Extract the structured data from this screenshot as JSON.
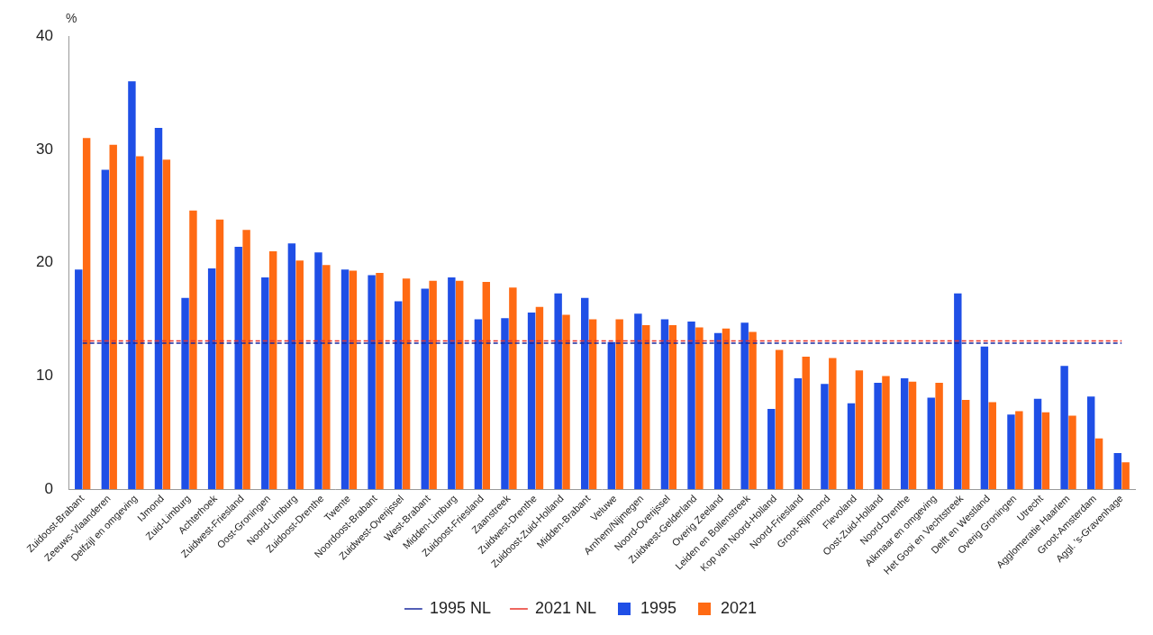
{
  "chart_data": {
    "type": "bar",
    "y_label": "%",
    "categories": [
      "Zuidoost-Brabant",
      "Zeeuws-Vlaanderen",
      "Delfzijl en omgeving",
      "IJmond",
      "Zuid-Limburg",
      "Achterhoek",
      "Zuidwest-Friesland",
      "Oost-Groningen",
      "Noord-Limburg",
      "Zuidoost-Drenthe",
      "Twente",
      "Noordoost-Brabant",
      "Zuidwest-Overijssel",
      "West-Brabant",
      "Midden-Limburg",
      "Zuidoost-Friesland",
      "Zaanstreek",
      "Zuidwest-Drenthe",
      "Zuidoost-Zuid-Holland",
      "Midden-Brabant",
      "Veluwe",
      "Arnhem/Nijmegen",
      "Noord-Overijssel",
      "Zuidwest-Gelderland",
      "Overig Zeeland",
      "Leiden en Bollenstreek",
      "Kop van Noord-Holland",
      "Noord-Friesland",
      "Groot-Rijnmond",
      "Flevoland",
      "Oost-Zuid-Holland",
      "Noord-Drenthe",
      "Alkmaar en omgeving",
      "Het Gooi en Vechtstreek",
      "Delft en Westland",
      "Overig Groningen",
      "Utrecht",
      "Agglomeratie Haarlem",
      "Groot-Amsterdam",
      "Aggl. 's-Gravenhage"
    ],
    "series": [
      {
        "name": "1995",
        "type": "bar",
        "color": "#1f4fe6",
        "values": [
          19.4,
          28.2,
          36.0,
          31.9,
          16.9,
          19.5,
          21.4,
          18.7,
          21.7,
          20.9,
          19.4,
          18.9,
          16.6,
          17.7,
          18.7,
          15.0,
          15.1,
          15.6,
          17.3,
          16.9,
          13.0,
          15.5,
          15.0,
          14.8,
          13.8,
          14.7,
          7.1,
          9.8,
          9.3,
          7.6,
          9.4,
          9.8,
          8.1,
          17.3,
          12.6,
          6.6,
          8.0,
          10.9,
          8.2,
          3.2
        ]
      },
      {
        "name": "2021",
        "type": "bar",
        "color": "#ff6a13",
        "values": [
          31.0,
          30.4,
          29.4,
          29.1,
          24.6,
          23.8,
          22.9,
          21.0,
          20.2,
          19.8,
          19.3,
          19.1,
          18.6,
          18.4,
          18.4,
          18.3,
          17.8,
          16.1,
          15.4,
          15.0,
          15.0,
          14.5,
          14.5,
          14.3,
          14.2,
          13.9,
          12.3,
          11.7,
          11.6,
          10.5,
          10.0,
          9.5,
          9.4,
          7.9,
          7.7,
          6.9,
          6.8,
          6.5,
          4.5,
          2.4
        ]
      },
      {
        "name": "1995 NL",
        "type": "line",
        "line_style": "dashed",
        "color": "#1a2a9e",
        "values": [
          12.9,
          12.9,
          12.9,
          12.9,
          12.9,
          12.9,
          12.9,
          12.9,
          12.9,
          12.9,
          12.9,
          12.9,
          12.9,
          12.9,
          12.9,
          12.9,
          12.9,
          12.9,
          12.9,
          12.9,
          12.9,
          12.9,
          12.9,
          12.9,
          12.9,
          12.9,
          12.9,
          12.9,
          12.9,
          12.9,
          12.9,
          12.9,
          12.9,
          12.9,
          12.9,
          12.9,
          12.9,
          12.9,
          12.9,
          12.9
        ]
      },
      {
        "name": "2021 NL",
        "type": "line",
        "line_style": "dashed",
        "color": "#e8332a",
        "values": [
          13.1,
          13.1,
          13.1,
          13.1,
          13.1,
          13.1,
          13.1,
          13.1,
          13.1,
          13.1,
          13.1,
          13.1,
          13.1,
          13.1,
          13.1,
          13.1,
          13.1,
          13.1,
          13.1,
          13.1,
          13.1,
          13.1,
          13.1,
          13.1,
          13.1,
          13.1,
          13.1,
          13.1,
          13.1,
          13.1,
          13.1,
          13.1,
          13.1,
          13.1,
          13.1,
          13.1,
          13.1,
          13.1,
          13.1,
          13.1
        ]
      }
    ],
    "ylim": [
      0,
      40
    ],
    "yticks": [
      0,
      10,
      20,
      30,
      40
    ],
    "grid": false,
    "legend": "bottom"
  }
}
